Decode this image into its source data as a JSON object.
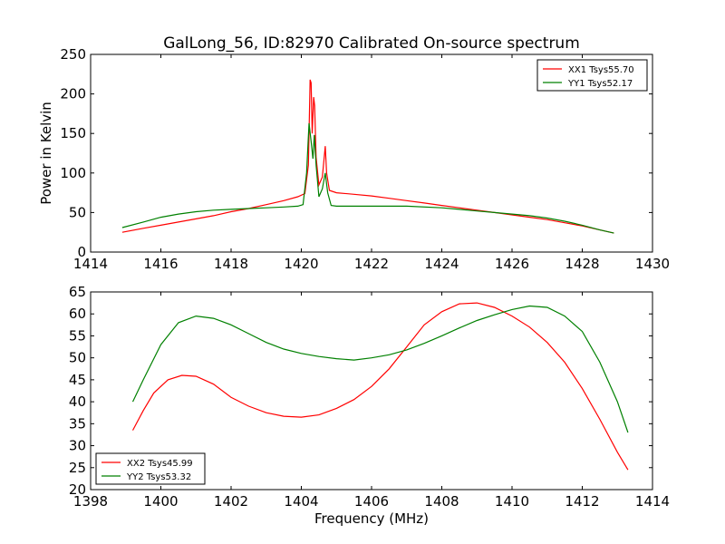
{
  "figure_title": "GalLong_56, ID:82970 Calibrated On-source spectrum",
  "chart_data": [
    {
      "type": "line",
      "title": "GalLong_56, ID:82970 Calibrated On-source spectrum",
      "xlabel": "",
      "ylabel": "Power in Kelvin",
      "xlim": [
        1414,
        1430
      ],
      "ylim": [
        0,
        250
      ],
      "x_ticks": [
        1414,
        1416,
        1418,
        1420,
        1422,
        1424,
        1426,
        1428,
        1430
      ],
      "y_ticks": [
        0,
        50,
        100,
        150,
        200,
        250
      ],
      "x_tick_labels": [
        "1414",
        "1416",
        "1418",
        "1420",
        "1422",
        "1424",
        "1426",
        "1428",
        "1430"
      ],
      "y_tick_labels": [
        "0",
        "50",
        "100",
        "150",
        "200",
        "250"
      ],
      "grid": false,
      "legend_position": "top-right",
      "series": [
        {
          "name": "XX1 Tsys55.70",
          "color": "#ff0000",
          "points": [
            [
              1414.9,
              25
            ],
            [
              1415.5,
              30
            ],
            [
              1416,
              34
            ],
            [
              1416.5,
              38
            ],
            [
              1417,
              42
            ],
            [
              1417.5,
              46
            ],
            [
              1418,
              51
            ],
            [
              1418.5,
              55
            ],
            [
              1419,
              60
            ],
            [
              1419.5,
              65
            ],
            [
              1419.9,
              70
            ],
            [
              1420.1,
              74
            ],
            [
              1420.2,
              110
            ],
            [
              1420.25,
              218
            ],
            [
              1420.28,
              214
            ],
            [
              1420.31,
              150
            ],
            [
              1420.35,
              196
            ],
            [
              1420.38,
              185
            ],
            [
              1420.42,
              120
            ],
            [
              1420.5,
              85
            ],
            [
              1420.6,
              95
            ],
            [
              1420.68,
              134
            ],
            [
              1420.72,
              100
            ],
            [
              1420.8,
              78
            ],
            [
              1421,
              75
            ],
            [
              1421.5,
              73
            ],
            [
              1422,
              71
            ],
            [
              1422.5,
              68
            ],
            [
              1423,
              65
            ],
            [
              1423.5,
              62
            ],
            [
              1424,
              59
            ],
            [
              1424.5,
              56
            ],
            [
              1425,
              53
            ],
            [
              1425.5,
              50
            ],
            [
              1426,
              47
            ],
            [
              1426.5,
              44
            ],
            [
              1427,
              41
            ],
            [
              1427.5,
              37
            ],
            [
              1428,
              33
            ],
            [
              1428.5,
              28
            ],
            [
              1428.9,
              24
            ]
          ]
        },
        {
          "name": "YY1 Tsys52.17",
          "color": "#008000",
          "points": [
            [
              1414.9,
              31
            ],
            [
              1415.5,
              38
            ],
            [
              1416,
              44
            ],
            [
              1416.5,
              48
            ],
            [
              1417,
              51
            ],
            [
              1417.5,
              53
            ],
            [
              1418,
              54
            ],
            [
              1418.5,
              55
            ],
            [
              1419,
              56
            ],
            [
              1419.5,
              57
            ],
            [
              1419.9,
              58
            ],
            [
              1420.05,
              60
            ],
            [
              1420.15,
              100
            ],
            [
              1420.22,
              163
            ],
            [
              1420.28,
              140
            ],
            [
              1420.33,
              118
            ],
            [
              1420.37,
              148
            ],
            [
              1420.42,
              110
            ],
            [
              1420.5,
              70
            ],
            [
              1420.6,
              80
            ],
            [
              1420.68,
              100
            ],
            [
              1420.75,
              75
            ],
            [
              1420.85,
              59
            ],
            [
              1421,
              58
            ],
            [
              1422,
              58
            ],
            [
              1423,
              58
            ],
            [
              1424,
              56
            ],
            [
              1424.5,
              54
            ],
            [
              1425,
              52
            ],
            [
              1425.5,
              50
            ],
            [
              1426,
              48
            ],
            [
              1426.5,
              46
            ],
            [
              1427,
              43
            ],
            [
              1427.5,
              39
            ],
            [
              1428,
              34
            ],
            [
              1428.5,
              28
            ],
            [
              1428.9,
              24
            ]
          ]
        }
      ]
    },
    {
      "type": "line",
      "title": "",
      "xlabel": "Frequency (MHz)",
      "ylabel": "",
      "xlim": [
        1398,
        1414
      ],
      "ylim": [
        20,
        65
      ],
      "x_ticks": [
        1398,
        1400,
        1402,
        1404,
        1406,
        1408,
        1410,
        1412,
        1414
      ],
      "y_ticks": [
        20,
        25,
        30,
        35,
        40,
        45,
        50,
        55,
        60,
        65
      ],
      "x_tick_labels": [
        "1398",
        "1400",
        "1402",
        "1404",
        "1406",
        "1408",
        "1410",
        "1412",
        "1414"
      ],
      "y_tick_labels": [
        "20",
        "25",
        "30",
        "35",
        "40",
        "45",
        "50",
        "55",
        "60",
        "65"
      ],
      "grid": false,
      "legend_position": "bottom-left",
      "series": [
        {
          "name": "XX2 Tsys45.99",
          "color": "#ff0000",
          "points": [
            [
              1399.2,
              33.5
            ],
            [
              1399.5,
              38
            ],
            [
              1399.8,
              42
            ],
            [
              1400.2,
              45
            ],
            [
              1400.6,
              46
            ],
            [
              1401,
              45.8
            ],
            [
              1401.5,
              44
            ],
            [
              1402,
              41
            ],
            [
              1402.5,
              39
            ],
            [
              1403,
              37.5
            ],
            [
              1403.5,
              36.7
            ],
            [
              1404,
              36.5
            ],
            [
              1404.5,
              37
            ],
            [
              1405,
              38.5
            ],
            [
              1405.5,
              40.5
            ],
            [
              1406,
              43.5
            ],
            [
              1406.5,
              47.5
            ],
            [
              1407,
              52.5
            ],
            [
              1407.5,
              57.5
            ],
            [
              1408,
              60.5
            ],
            [
              1408.5,
              62.3
            ],
            [
              1409,
              62.5
            ],
            [
              1409.5,
              61.5
            ],
            [
              1410,
              59.5
            ],
            [
              1410.5,
              57
            ],
            [
              1411,
              53.5
            ],
            [
              1411.5,
              49
            ],
            [
              1412,
              43
            ],
            [
              1412.5,
              36
            ],
            [
              1413,
              28.5
            ],
            [
              1413.3,
              24.5
            ]
          ]
        },
        {
          "name": "YY2 Tsys53.32",
          "color": "#008000",
          "points": [
            [
              1399.2,
              40
            ],
            [
              1399.5,
              45
            ],
            [
              1400,
              53
            ],
            [
              1400.5,
              58
            ],
            [
              1401,
              59.5
            ],
            [
              1401.5,
              59
            ],
            [
              1402,
              57.5
            ],
            [
              1402.5,
              55.5
            ],
            [
              1403,
              53.5
            ],
            [
              1403.5,
              52
            ],
            [
              1404,
              51
            ],
            [
              1404.5,
              50.3
            ],
            [
              1405,
              49.8
            ],
            [
              1405.5,
              49.5
            ],
            [
              1406,
              50
            ],
            [
              1406.5,
              50.7
            ],
            [
              1407,
              51.8
            ],
            [
              1407.5,
              53.3
            ],
            [
              1408,
              55
            ],
            [
              1408.5,
              56.8
            ],
            [
              1409,
              58.5
            ],
            [
              1409.5,
              59.8
            ],
            [
              1410,
              61
            ],
            [
              1410.5,
              61.8
            ],
            [
              1411,
              61.5
            ],
            [
              1411.5,
              59.5
            ],
            [
              1412,
              56
            ],
            [
              1412.5,
              49
            ],
            [
              1413,
              40
            ],
            [
              1413.3,
              33
            ]
          ]
        }
      ]
    }
  ]
}
